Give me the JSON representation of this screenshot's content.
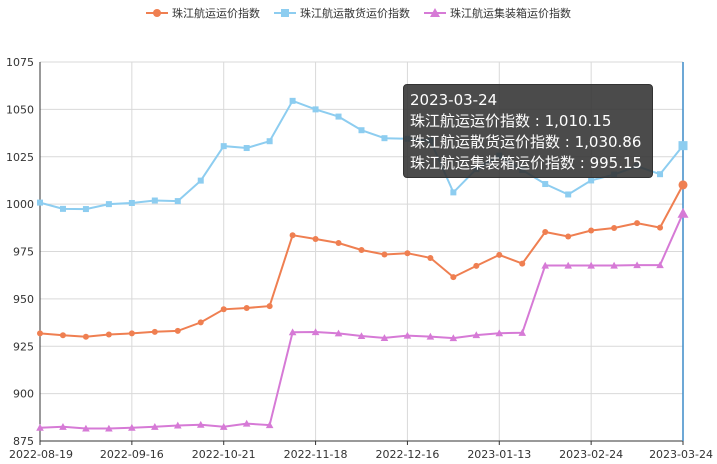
{
  "chart_data": {
    "type": "line",
    "ylim": [
      875,
      1075
    ],
    "yticks": [
      875,
      900,
      925,
      950,
      975,
      1000,
      1025,
      1050,
      1075
    ],
    "x_tick_labels": [
      "2022-08-19",
      "2022-09-16",
      "2022-10-21",
      "2022-11-18",
      "2022-12-16",
      "2023-01-13",
      "2023-02-24",
      "2023-03-24"
    ],
    "grid": true,
    "legend_position": "top-center",
    "series": [
      {
        "name": "珠江航运运价指数",
        "color": "#ef7f51",
        "marker": "circle",
        "values": [
          931.8,
          930.8,
          930.0,
          931.2,
          931.8,
          932.6,
          933.1,
          937.6,
          944.5,
          945.2,
          946.2,
          983.6,
          981.6,
          979.5,
          975.8,
          973.4,
          974.1,
          971.6,
          961.5,
          967.4,
          973.2,
          968.6,
          985.3,
          982.9,
          986.1,
          987.4,
          990.0,
          987.6,
          1010.15
        ]
      },
      {
        "name": "珠江航运散货运价指数",
        "color": "#8dcdf0",
        "marker": "square",
        "values": [
          1000.8,
          997.5,
          997.4,
          1000.0,
          1000.6,
          1001.9,
          1001.6,
          1012.4,
          1030.6,
          1029.6,
          1033.2,
          1054.5,
          1050.0,
          1046.2,
          1039.0,
          1034.8,
          1034.5,
          1033.5,
          1006.2,
          1018.5,
          1025.6,
          1018.0,
          1010.6,
          1005.1,
          1012.5,
          1015.6,
          1020.0,
          1015.8,
          1030.86
        ]
      },
      {
        "name": "珠江航运集装箱运价指数",
        "color": "#d67ad6",
        "marker": "triangle",
        "values": [
          882.0,
          882.5,
          881.6,
          881.6,
          882.0,
          882.5,
          883.2,
          883.6,
          882.5,
          884.2,
          883.4,
          932.4,
          932.5,
          931.8,
          930.4,
          929.4,
          930.6,
          930.1,
          929.3,
          930.9,
          931.9,
          932.1,
          967.6,
          967.6,
          967.6,
          967.6,
          967.8,
          967.8,
          995.15
        ]
      }
    ]
  },
  "tooltip": {
    "date": "2023-03-24",
    "rows": [
      "珠江航运运价指数 : 1,010.15",
      "珠江航运散货运价指数 : 1,030.86",
      "珠江航运集装箱运价指数 : 995.15"
    ]
  }
}
